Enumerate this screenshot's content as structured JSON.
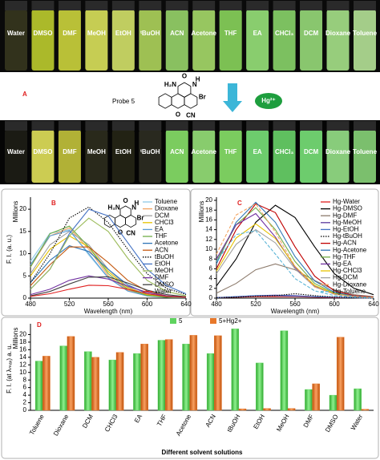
{
  "photo": {
    "panel_label": "A",
    "probe_label": "Probe 5",
    "ion_label": "Hg²⁺",
    "vial_labels": [
      "Water",
      "DMSO",
      "DMF",
      "MeOH",
      "EtOH",
      "ᵗBuOH",
      "ACN",
      "Acetone",
      "THF",
      "EA",
      "CHCl₃",
      "DCM",
      "Dioxane",
      "Toluene"
    ],
    "vial_colors_before": [
      "#3a3a20",
      "#c8d830",
      "#d8e040",
      "#e8f060",
      "#e0f070",
      "#b8e060",
      "#a0e070",
      "#b0e870",
      "#90e060",
      "#a0f080",
      "#90e070",
      "#a0e880",
      "#b0f090",
      "#c0f0a0"
    ],
    "vial_colors_after": [
      "#202018",
      "#f0f060",
      "#d0d040",
      "#303020",
      "#282818",
      "#303025",
      "#90f070",
      "#a0f080",
      "#90f070",
      "#80f080",
      "#70e070",
      "#80f080",
      "#a0f090",
      "#90e080"
    ]
  },
  "structure": {
    "atoms": [
      "H₂N",
      "O",
      "N",
      "H",
      "Br",
      "O",
      "CN"
    ]
  },
  "chart_data": [
    {
      "type": "line",
      "panel_label": "B",
      "units_label": "Millions",
      "x_label": "Wavelength (nm)",
      "y_label": "F. I. (a. u.)",
      "x": [
        480,
        500,
        520,
        540,
        560,
        580,
        600,
        620,
        640
      ],
      "xlim": [
        480,
        640
      ],
      "xticks": [
        480,
        520,
        560,
        600,
        640
      ],
      "ylim": [
        0,
        22
      ],
      "yticks": [
        0,
        5,
        10,
        15,
        20
      ],
      "series": [
        {
          "name": "Toluene",
          "color": "#8ecae6",
          "style": "solid",
          "values": [
            8.3,
            14.6,
            15.4,
            9.7,
            4.5,
            1.6,
            0.5,
            0.2,
            0.1
          ]
        },
        {
          "name": "Dioxane",
          "color": "#f4a460",
          "style": "solid",
          "values": [
            7,
            14,
            15.8,
            11,
            5,
            1.8,
            0.6,
            0.2,
            0.1
          ]
        },
        {
          "name": "DCM",
          "color": "#a0a0a0",
          "style": "solid",
          "values": [
            5.5,
            12,
            15,
            12,
            6.5,
            2.5,
            0.8,
            0.3,
            0.1
          ]
        },
        {
          "name": "CHCl3",
          "color": "#e6c200",
          "style": "solid",
          "values": [
            5,
            11,
            14,
            11.5,
            6,
            2.3,
            0.8,
            0.3,
            0.1
          ]
        },
        {
          "name": "EA",
          "color": "#5b9bd5",
          "style": "solid",
          "values": [
            7.5,
            14,
            15.2,
            10,
            4.6,
            1.6,
            0.5,
            0.2,
            0.1
          ]
        },
        {
          "name": "THF",
          "color": "#70ad47",
          "style": "solid",
          "values": [
            7,
            14.5,
            16.2,
            11.5,
            5.5,
            2,
            0.6,
            0.2,
            0.1
          ]
        },
        {
          "name": "Acetone",
          "color": "#2e75b6",
          "style": "solid",
          "values": [
            3.5,
            8.5,
            11.8,
            10.5,
            6.5,
            3,
            1,
            0.4,
            0.1
          ]
        },
        {
          "name": "ACN",
          "color": "#c55a11",
          "style": "solid",
          "values": [
            2.8,
            7.5,
            11.5,
            11.5,
            8,
            4,
            1.6,
            0.5,
            0.2
          ]
        },
        {
          "name": "tBuOH",
          "color": "#000000",
          "style": "dotted",
          "values": [
            3.5,
            10,
            18,
            20.5,
            17,
            11,
            5.5,
            2.2,
            0.8
          ]
        },
        {
          "name": "EtOH",
          "color": "#4472c4",
          "style": "solid",
          "values": [
            2,
            6.5,
            14.5,
            20,
            18.5,
            12.5,
            6.5,
            2.8,
            1
          ]
        },
        {
          "name": "MeOH",
          "color": "#9bbb59",
          "style": "solid",
          "values": [
            2,
            6.5,
            14,
            18,
            15,
            9,
            4,
            1.5,
            0.5
          ]
        },
        {
          "name": "DMF",
          "color": "#7030a0",
          "style": "solid",
          "values": [
            0.8,
            2,
            4,
            5,
            4.3,
            2.7,
            1.3,
            0.5,
            0.2
          ]
        },
        {
          "name": "DMSO",
          "color": "#404040",
          "style": "solid",
          "values": [
            0.5,
            1.5,
            3.2,
            4.7,
            4.8,
            3.4,
            1.8,
            0.8,
            0.3
          ]
        },
        {
          "name": "Water",
          "color": "#e02020",
          "style": "solid",
          "values": [
            0.4,
            1,
            2,
            2.9,
            2.8,
            2,
            1,
            0.4,
            0.2
          ]
        }
      ]
    },
    {
      "type": "line",
      "panel_label": "C",
      "units_label": "Millions",
      "x_label": "Wavelength (nm)",
      "x": [
        480,
        500,
        520,
        540,
        560,
        580,
        600,
        620,
        640
      ],
      "xlim": [
        480,
        640
      ],
      "xticks": [
        480,
        520,
        560,
        600,
        640
      ],
      "ylim": [
        0,
        20
      ],
      "yticks": [
        0,
        2,
        4,
        6,
        8,
        10,
        12,
        14,
        16,
        18,
        20
      ],
      "series": [
        {
          "name": "Hg-Water",
          "color": "#e02020",
          "style": "solid",
          "values": [
            0.1,
            0.2,
            0.3,
            0.3,
            0.3,
            0.2,
            0.1,
            0.1,
            0
          ]
        },
        {
          "name": "Hg-DMSO",
          "color": "#000000",
          "style": "solid",
          "values": [
            2.5,
            8,
            15.5,
            19,
            16.5,
            10.5,
            5,
            2,
            0.7
          ]
        },
        {
          "name": "Hg-DMF",
          "color": "#8c7a6b",
          "style": "solid",
          "values": [
            1,
            3,
            5.8,
            7,
            5.8,
            3.6,
            1.7,
            0.7,
            0.3
          ]
        },
        {
          "name": "Hg-MeOH",
          "color": "#5b3a9e",
          "style": "solid",
          "values": [
            0.1,
            0.3,
            0.5,
            0.6,
            0.5,
            0.3,
            0.2,
            0.1,
            0
          ]
        },
        {
          "name": "Hg-EtOH",
          "color": "#4472c4",
          "style": "solid",
          "values": [
            0.1,
            0.3,
            0.5,
            0.5,
            0.4,
            0.3,
            0.2,
            0.1,
            0
          ]
        },
        {
          "name": "Hg-tBuOH",
          "color": "#000000",
          "style": "dotted",
          "values": [
            0.1,
            0.2,
            0.4,
            0.5,
            0.9,
            0.5,
            0.2,
            0.1,
            0
          ]
        },
        {
          "name": "Hg-ACN",
          "color": "#c00000",
          "style": "solid",
          "values": [
            6,
            14,
            19.3,
            17.5,
            10.5,
            4.5,
            1.5,
            0.5,
            0.2
          ]
        },
        {
          "name": "Hg-Acetone",
          "color": "#2e75b6",
          "style": "solid",
          "values": [
            7,
            15.5,
            19.6,
            15.5,
            8.5,
            3.5,
            1.2,
            0.4,
            0.1
          ]
        },
        {
          "name": "Hg-THF",
          "color": "#70ad47",
          "style": "solid",
          "values": [
            7.5,
            15,
            18.5,
            14,
            7.5,
            3,
            1,
            0.3,
            0.1
          ]
        },
        {
          "name": "Hg-EA",
          "color": "#7030a0",
          "style": "solid",
          "values": [
            8,
            15,
            17.3,
            12.5,
            6.3,
            2.4,
            0.8,
            0.3,
            0.1
          ]
        },
        {
          "name": "Hg-CHCl3",
          "color": "#e6c200",
          "style": "solid",
          "values": [
            5.5,
            12.3,
            15.2,
            12.2,
            6.5,
            2.6,
            0.9,
            0.3,
            0.1
          ]
        },
        {
          "name": "Hg-DCM",
          "color": "#a0a0a0",
          "style": "solid",
          "values": [
            5,
            11,
            14,
            11.3,
            6,
            2.3,
            0.8,
            0.3,
            0.1
          ]
        },
        {
          "name": "Hg-Dioxane",
          "color": "#f4a460",
          "style": "dashed",
          "values": [
            9,
            17,
            19.3,
            13.5,
            6.5,
            2.3,
            0.8,
            0.3,
            0.1
          ]
        },
        {
          "name": "Hg-Toluene",
          "color": "#5ab4d6",
          "style": "dashed",
          "values": [
            7.5,
            13,
            13.8,
            9,
            4,
            1.5,
            0.5,
            0.2,
            0.1
          ]
        }
      ]
    },
    {
      "type": "bar",
      "panel_label": "D",
      "units_label": "Millions",
      "x_label": "Different solvent solutions",
      "y_label": "F. I. (at λₘₐₓ) a. u.",
      "categories": [
        "Toluene",
        "Dioxane",
        "DCM",
        "CHCl3",
        "EA",
        "THF",
        "Acetone",
        "ACN",
        "tBuOH",
        "EtOH",
        "MeOH",
        "DMF",
        "DMSO",
        "Water"
      ],
      "ylim": [
        0,
        22
      ],
      "yticks": [
        0,
        2,
        4,
        6,
        8,
        10,
        12,
        14,
        16,
        18,
        20
      ],
      "series": [
        {
          "name": "5",
          "color": "#5fd35f",
          "values": [
            13,
            17,
            15.5,
            13.3,
            15,
            18.5,
            17.5,
            15,
            21.5,
            12.5,
            21,
            5.5,
            4,
            5.7
          ]
        },
        {
          "name": "5+Hg2+",
          "color": "#e8782a",
          "values": [
            14.3,
            19.5,
            14,
            15.3,
            17.5,
            18.7,
            19.8,
            19.7,
            0.4,
            0.5,
            0.5,
            7,
            19.3,
            0.3
          ]
        }
      ]
    }
  ]
}
